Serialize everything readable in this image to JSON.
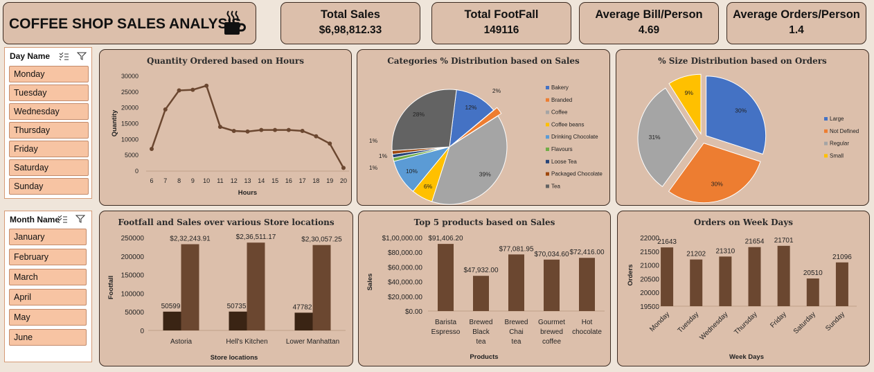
{
  "header": {
    "title": "COFFEE SHOP SALES ANALYSIS",
    "cup_icon": "coffee-cup-icon"
  },
  "kpis": [
    {
      "label": "Total Sales",
      "value": "$6,98,812.33"
    },
    {
      "label": "Total FootFall",
      "value": "149116"
    },
    {
      "label": "Average Bill/Person",
      "value": "4.69"
    },
    {
      "label": "Average Orders/Person",
      "value": "1.4"
    }
  ],
  "slicers": {
    "day": {
      "title": "Day Name",
      "items": [
        "Monday",
        "Tuesday",
        "Wednesday",
        "Thursday",
        "Friday",
        "Saturday",
        "Sunday"
      ]
    },
    "month": {
      "title": "Month Name",
      "items": [
        "January",
        "February",
        "March",
        "April",
        "May",
        "June"
      ]
    }
  },
  "colors": {
    "brown": "#6b4730",
    "dark_brown": "#3a2414",
    "panel": "#dcbfab",
    "slicer_item": "#f7c4a3"
  },
  "chart_data": [
    {
      "type": "line",
      "title": "Quantity Ordered based on Hours",
      "xlabel": "Hours",
      "ylabel": "Quantity",
      "x": [
        6,
        7,
        8,
        9,
        10,
        11,
        12,
        13,
        14,
        15,
        16,
        17,
        18,
        19,
        20
      ],
      "values": [
        7000,
        19500,
        25500,
        25700,
        27000,
        14000,
        12700,
        12500,
        13000,
        13000,
        13000,
        12700,
        11000,
        8700,
        1000
      ],
      "ylim": [
        0,
        30000
      ],
      "yticks": [
        "30000",
        "25000",
        "20000",
        "15000",
        "10000",
        "5000",
        "0"
      ],
      "xticks": [
        "6",
        "7",
        "8",
        "9",
        "10",
        "11",
        "12",
        "13",
        "14",
        "15",
        "16",
        "17",
        "18",
        "19",
        "20"
      ],
      "grid": false
    },
    {
      "type": "pie",
      "title": "Categories % Distribution based on Sales",
      "legend_position": "right",
      "slices": [
        {
          "name": "Bakery",
          "value": 12,
          "label": "12%",
          "color": "#4472c4"
        },
        {
          "name": "Branded",
          "value": 2,
          "label": "2%",
          "color": "#ed7d31"
        },
        {
          "name": "Coffee",
          "value": 39,
          "label": "39%",
          "color": "#a5a5a5"
        },
        {
          "name": "Coffee beans",
          "value": 6,
          "label": "6%",
          "color": "#ffc000"
        },
        {
          "name": "Drinking Chocolate",
          "value": 10,
          "label": "10%",
          "color": "#5b9bd5"
        },
        {
          "name": "Flavours",
          "value": 1,
          "label": "1%",
          "color": "#70ad47"
        },
        {
          "name": "Loose Tea",
          "value": 1,
          "label": "1%",
          "color": "#264478"
        },
        {
          "name": "Packaged Chocolate",
          "value": 1,
          "label": "1%",
          "color": "#9e480e"
        },
        {
          "name": "Tea",
          "value": 28,
          "label": "28%",
          "color": "#636363"
        }
      ]
    },
    {
      "type": "pie",
      "title": "% Size Distribution based on Orders",
      "legend_position": "right",
      "slices": [
        {
          "name": "Large",
          "value": 30,
          "label": "30%",
          "color": "#4472c4"
        },
        {
          "name": "Not Defined",
          "value": 30,
          "label": "30%",
          "color": "#ed7d31"
        },
        {
          "name": "Regular",
          "value": 31,
          "label": "31%",
          "color": "#a5a5a5"
        },
        {
          "name": "Small",
          "value": 9,
          "label": "9%",
          "color": "#ffc000"
        }
      ]
    },
    {
      "type": "bar",
      "title": "Footfall and Sales over various Store locations",
      "xlabel": "Store locations",
      "ylabel": "Footfall",
      "categories": [
        "Astoria",
        "Hell's Kitchen",
        "Lower Manhattan"
      ],
      "series": [
        {
          "values": [
            50599,
            50735,
            47782
          ],
          "labels": [
            "50599",
            "50735",
            "47782"
          ],
          "color": "#3a2414"
        },
        {
          "values": [
            232243.91,
            236511.17,
            230057.25
          ],
          "labels": [
            "$2,32,243.91",
            "$2,36,511.17",
            "$2,30,057.25"
          ],
          "color": "#6b4730"
        }
      ],
      "ylim": [
        0,
        250000
      ],
      "yticks": [
        "250000",
        "200000",
        "150000",
        "100000",
        "50000",
        "0"
      ]
    },
    {
      "type": "bar",
      "title": "Top 5 products based on Sales",
      "xlabel": "Products",
      "ylabel": "Sales",
      "categories": [
        "Barista Espresso",
        "Brewed Black tea",
        "Brewed Chai tea",
        "Gourmet brewed coffee",
        "Hot chocolate"
      ],
      "values": [
        91406.2,
        47932.0,
        77081.95,
        70034.6,
        72416.0
      ],
      "labels": [
        "$91,406.20",
        "$47,932.00",
        "$77,081.95",
        "$70,034.60",
        "$72,416.00"
      ],
      "ylim": [
        0,
        100000
      ],
      "yticks": [
        "$1,00,000.00",
        "$80,000.00",
        "$60,000.00",
        "$40,000.00",
        "$20,000.00",
        "$0.00"
      ]
    },
    {
      "type": "bar",
      "title": "Orders on Week Days",
      "xlabel": "Week Days",
      "ylabel": "Orders",
      "categories": [
        "Monday",
        "Tuesday",
        "Wednesday",
        "Thursday",
        "Friday",
        "Saturday",
        "Sunday"
      ],
      "values": [
        21643,
        21202,
        21310,
        21654,
        21701,
        20510,
        21096
      ],
      "labels": [
        "21643",
        "21202",
        "21310",
        "21654",
        "21701",
        "20510",
        "21096"
      ],
      "ylim": [
        19500,
        22000
      ],
      "yticks": [
        "22000",
        "21500",
        "21000",
        "20500",
        "20000",
        "19500"
      ]
    }
  ]
}
